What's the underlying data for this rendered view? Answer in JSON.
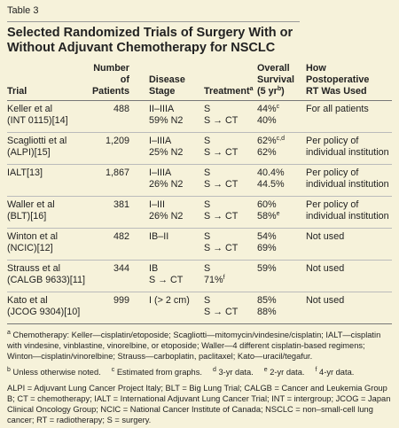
{
  "label": "Table 3",
  "title": "Selected Randomized Trials of Surgery With or Without Adjuvant Chemotherapy for NSCLC",
  "table": {
    "header": [
      [
        "Trial"
      ],
      [
        "Number of",
        "Patients"
      ],
      [
        "Disease",
        "Stage"
      ],
      [
        {
          "text": "Treatment",
          "sup": "a"
        }
      ],
      [
        "Overall",
        "Survival",
        {
          "text": "(5 yr",
          "sup": "b",
          "tail": ")"
        }
      ],
      [
        "How",
        "Postoperative",
        "RT Was Used"
      ]
    ],
    "rows": [
      [
        [
          "Keller et al",
          "(INT 0115)[14]"
        ],
        [
          "488"
        ],
        [
          "II–IIIA",
          "59% N2"
        ],
        [
          "S",
          "S → CT"
        ],
        [
          {
            "text": "44%",
            "sup": "c"
          },
          "40%"
        ],
        [
          "For all patients"
        ]
      ],
      [
        [
          "Scagliotti et al",
          "(ALPI)[15]"
        ],
        [
          "1,209"
        ],
        [
          "I–IIIA",
          "25% N2"
        ],
        [
          "S",
          "S → CT"
        ],
        [
          {
            "text": "62%",
            "sup": "c,d"
          },
          "62%"
        ],
        [
          "Per policy of",
          "individual institution"
        ]
      ],
      [
        [
          "IALT[13]"
        ],
        [
          "1,867"
        ],
        [
          "I–IIIA",
          "26% N2"
        ],
        [
          "S",
          "S → CT"
        ],
        [
          "40.4%",
          "44.5%"
        ],
        [
          "Per policy of",
          "individual institution"
        ]
      ],
      [
        [
          "Waller et al",
          "(BLT)[16]"
        ],
        [
          "381"
        ],
        [
          "I–III",
          "26% N2"
        ],
        [
          "S",
          "S → CT"
        ],
        [
          "60%",
          {
            "text": "58%",
            "sup": "e"
          }
        ],
        [
          "Per policy of",
          "individual institution"
        ]
      ],
      [
        [
          "Winton et al",
          "(NCIC)[12]"
        ],
        [
          "482"
        ],
        [
          "IB–II"
        ],
        [
          "S",
          "S → CT"
        ],
        [
          "54%",
          "69%"
        ],
        [
          "Not used"
        ]
      ],
      [
        [
          "Strauss et al",
          "(CALGB 9633)[11]"
        ],
        [
          "344"
        ],
        [
          "IB",
          "S → CT"
        ],
        [
          "S",
          {
            "text": "71%",
            "sup": "f"
          }
        ],
        [
          "59%"
        ],
        [
          "Not used"
        ]
      ],
      [
        [
          "Kato et al",
          "(JCOG 9304)[10]"
        ],
        [
          "999"
        ],
        [
          "I (> 2 cm)"
        ],
        [
          "S",
          "S → CT"
        ],
        [
          "85%",
          "88%"
        ],
        [
          "Not used"
        ]
      ]
    ]
  },
  "footnotes": [
    [
      {
        "sup": "a",
        "text": "Chemotherapy: Keller—cisplatin/etoposide; Scagliotti—mitomycin/vindesine/cisplatin; IALT—cisplatin with vindesine, vinblastine, vinorelbine, or etoposide; Waller—4 different cisplatin-based regimens; Winton—cisplatin/vinorelbine; Strauss—carboplatin, paclitaxel; Kato—uracil/tegafur."
      }
    ],
    [
      {
        "sup": "b",
        "text": "Unless otherwise noted."
      },
      {
        "sup": "c",
        "text": "Estimated from graphs."
      },
      {
        "sup": "d",
        "text": "3-yr data."
      },
      {
        "sup": "e",
        "text": "2-yr data."
      },
      {
        "sup": "f",
        "text": "4-yr data."
      }
    ]
  ],
  "abbreviations": "ALPI = Adjuvant Lung Cancer Project Italy; BLT = Big Lung Trial; CALGB = Cancer and Leukemia Group B; CT = chemotherapy; IALT = International Adjuvant Lung Cancer Trial; INT = intergroup; JCOG = Japan Clinical Oncology Group; NCIC = National Cancer Institute of Canada; NSCLC = non–small-cell lung cancer; RT = radiotherapy; S = surgery."
}
